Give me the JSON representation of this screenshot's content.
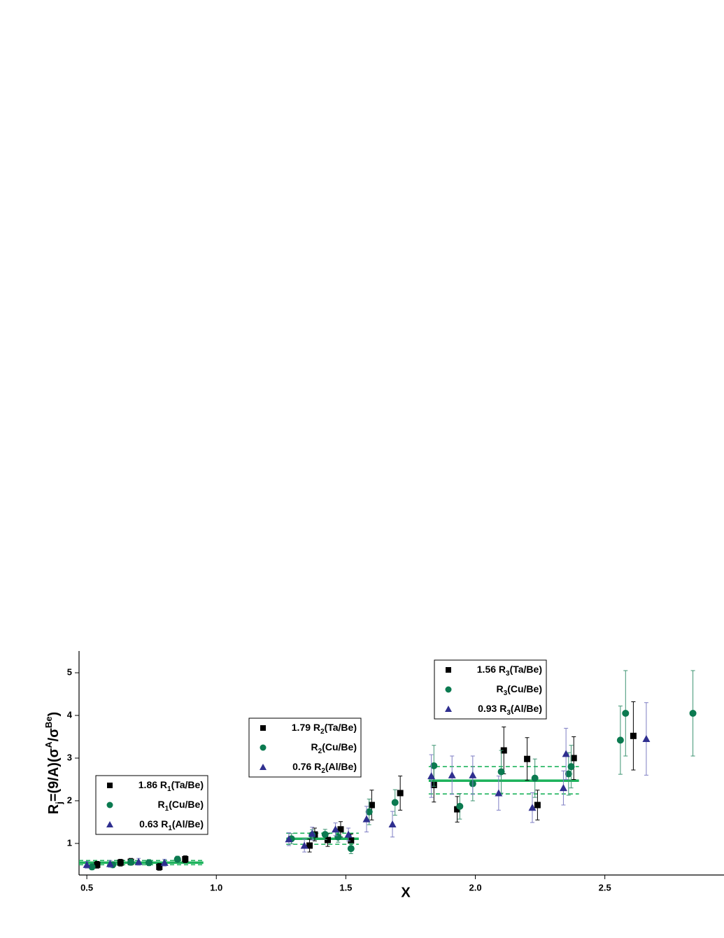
{
  "chart_data": {
    "type": "scatter",
    "x_label": "X",
    "y_label_parts": [
      {
        "text": "R"
      },
      {
        "text": "j",
        "shift": "sub"
      },
      {
        "text": "=(9/A)(σ"
      },
      {
        "text": "A",
        "shift": "super"
      },
      {
        "text": "/σ"
      },
      {
        "text": "Be",
        "shift": "super"
      },
      {
        "text": ")"
      }
    ],
    "xlim": [
      0.47,
      2.96
    ],
    "ylim": [
      0.26,
      5.51
    ],
    "xticks": [
      0.5,
      {
        "value": 1,
        "label": "1.0"
      },
      1.5,
      {
        "value": 2,
        "label": "2.0"
      },
      2.5
    ],
    "yticks": [
      1,
      2,
      3,
      4,
      5
    ],
    "fit_color": "#1db35c",
    "groups": [
      {
        "fit": {
          "x": [
            0.47,
            0.95
          ],
          "y": 0.55,
          "band": [
            0.5,
            0.6
          ]
        },
        "series": [
          {
            "name": "1.86 R1(Ta/Be)",
            "marker": "square",
            "color": "#000000",
            "error_color": "#000000",
            "x": [
              0.54,
              0.63,
              0.67,
              0.78,
              0.88
            ],
            "values": [
              0.5,
              0.55,
              0.57,
              0.45,
              0.63
            ],
            "errors": [
              0.08,
              0.08,
              0.08,
              0.08,
              0.08
            ]
          },
          {
            "name": "R1(Cu/Be)",
            "marker": "circle",
            "color": "#0b7a50",
            "error_color": "#3f9573",
            "x": [
              0.52,
              0.6,
              0.67,
              0.74,
              0.85
            ],
            "values": [
              0.45,
              0.5,
              0.56,
              0.55,
              0.63
            ],
            "errors": [
              0.07,
              0.07,
              0.07,
              0.07,
              0.07
            ]
          },
          {
            "name": "0.63 R1(Al/Be)",
            "marker": "triangle",
            "color": "#2f2f8f",
            "error_color": "#7f7fc4",
            "x": [
              0.5,
              0.59,
              0.7,
              0.8
            ],
            "values": [
              0.5,
              0.52,
              0.57,
              0.55
            ],
            "errors": [
              0.08,
              0.08,
              0.08,
              0.08
            ]
          }
        ]
      },
      {
        "fit": {
          "x": [
            1.27,
            1.55
          ],
          "y": 1.11,
          "band": [
            0.98,
            1.24
          ]
        },
        "series": [
          {
            "name": "1.79 R2(Ta/Be)",
            "marker": "square",
            "color": "#000000",
            "error_color": "#000000",
            "x": [
              1.36,
              1.38,
              1.43,
              1.48,
              1.52,
              1.6,
              1.71
            ],
            "values": [
              0.95,
              1.21,
              1.08,
              1.33,
              1.07,
              1.9,
              2.18
            ],
            "errors": [
              0.15,
              0.15,
              0.15,
              0.18,
              0.15,
              0.35,
              0.4
            ]
          },
          {
            "name": "R2(Cu/Be)",
            "marker": "circle",
            "color": "#0b7a50",
            "error_color": "#3f9573",
            "x": [
              1.29,
              1.37,
              1.42,
              1.47,
              1.52,
              1.59,
              1.69
            ],
            "values": [
              1.11,
              1.2,
              1.21,
              1.15,
              0.88,
              1.74,
              1.96
            ],
            "errors": [
              0.12,
              0.12,
              0.12,
              0.12,
              0.12,
              0.3,
              0.3
            ]
          },
          {
            "name": "0.76 R2(Al/Be)",
            "marker": "triangle",
            "color": "#2f2f8f",
            "error_color": "#7f7fc4",
            "x": [
              1.28,
              1.34,
              1.37,
              1.46,
              1.51,
              1.58,
              1.68
            ],
            "values": [
              1.1,
              0.95,
              1.23,
              1.33,
              1.21,
              1.57,
              1.45
            ],
            "errors": [
              0.15,
              0.15,
              0.15,
              0.15,
              0.15,
              0.3,
              0.3
            ]
          }
        ]
      },
      {
        "fit": {
          "x": [
            1.82,
            2.4
          ],
          "y": 2.47,
          "band": [
            2.16,
            2.8
          ]
        },
        "series": [
          {
            "name": "1.56 R3(Ta/Be)",
            "marker": "square",
            "color": "#000000",
            "error_color": "#000000",
            "x": [
              1.84,
              1.93,
              2.11,
              2.2,
              2.24,
              2.38,
              2.61
            ],
            "values": [
              2.37,
              1.8,
              3.18,
              2.98,
              1.9,
              3.0,
              3.52
            ],
            "errors": [
              0.4,
              0.3,
              0.55,
              0.5,
              0.35,
              0.5,
              0.8
            ]
          },
          {
            "name": "R3(Cu/Be)",
            "marker": "circle",
            "color": "#0b7a50",
            "error_color": "#3f9573",
            "x": [
              1.84,
              1.94,
              1.99,
              2.1,
              2.23,
              2.36,
              2.37,
              2.56,
              2.58,
              2.84
            ],
            "values": [
              2.82,
              1.87,
              2.4,
              2.68,
              2.53,
              2.63,
              2.8,
              3.42,
              4.05,
              4.05
            ],
            "errors": [
              0.48,
              0.3,
              0.4,
              0.5,
              0.45,
              0.5,
              0.5,
              0.8,
              1.0,
              1.0
            ]
          },
          {
            "name": "0.93 R3(Al/Be)",
            "marker": "triangle",
            "color": "#2f2f8f",
            "error_color": "#7f7fc4",
            "x": [
              1.83,
              1.91,
              1.99,
              2.09,
              2.22,
              2.34,
              2.35,
              2.66
            ],
            "values": [
              2.58,
              2.6,
              2.6,
              2.18,
              1.84,
              2.3,
              3.1,
              3.45
            ],
            "errors": [
              0.5,
              0.45,
              0.45,
              0.4,
              0.35,
              0.4,
              0.6,
              0.85
            ]
          }
        ]
      }
    ]
  }
}
